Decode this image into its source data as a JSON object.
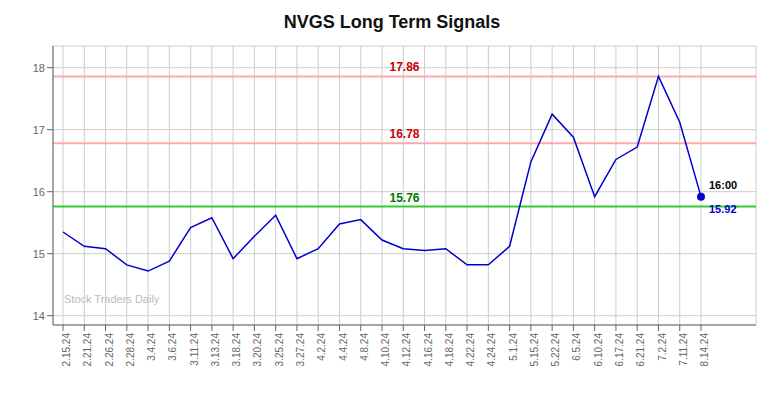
{
  "chart_data": {
    "type": "line",
    "title": "NVGS Long Term Signals",
    "categories": [
      "2.15.24",
      "2.21.24",
      "2.26.24",
      "2.28.24",
      "3.4.24",
      "3.6.24",
      "3.11.24",
      "3.13.24",
      "3.18.24",
      "3.20.24",
      "3.25.24",
      "3.27.24",
      "4.2.24",
      "4.4.24",
      "4.8.24",
      "4.10.24",
      "4.12.24",
      "4.16.24",
      "4.18.24",
      "4.22.24",
      "4.24.24",
      "5.1.24",
      "5.15.24",
      "5.22.24",
      "6.5.24",
      "6.10.24",
      "6.17.24",
      "6.21.24",
      "7.2.24",
      "7.11.24",
      "8.14.24"
    ],
    "values": [
      15.35,
      15.12,
      15.08,
      14.82,
      14.72,
      14.88,
      15.42,
      15.58,
      14.92,
      15.28,
      15.62,
      14.92,
      15.08,
      15.48,
      15.55,
      15.22,
      15.08,
      15.05,
      15.08,
      14.82,
      14.82,
      15.12,
      16.48,
      17.25,
      16.88,
      15.92,
      16.52,
      16.72,
      17.86,
      17.12,
      15.92
    ],
    "color": "#0000cc",
    "ylim": [
      13.85,
      18.35
    ],
    "yticks": [
      14,
      15,
      16,
      17,
      18
    ],
    "grid": true,
    "reference_lines": [
      {
        "y": 15.76,
        "label": "15.76",
        "color": "#33cc33",
        "label_color": "#007700"
      },
      {
        "y": 16.78,
        "label": "16.78",
        "color": "#ffaaaa",
        "label_color": "#cc0000"
      },
      {
        "y": 17.86,
        "label": "17.86",
        "color": "#ffaaaa",
        "label_color": "#cc0000"
      }
    ],
    "annotations": [
      {
        "text": "16:00",
        "x": "8.14.24",
        "y": 15.92,
        "color": "#000000"
      },
      {
        "text": "15.92",
        "x": "8.14.24",
        "y": 15.92,
        "color": "#0000cc"
      }
    ],
    "watermark": "Stock Traders Daily"
  }
}
